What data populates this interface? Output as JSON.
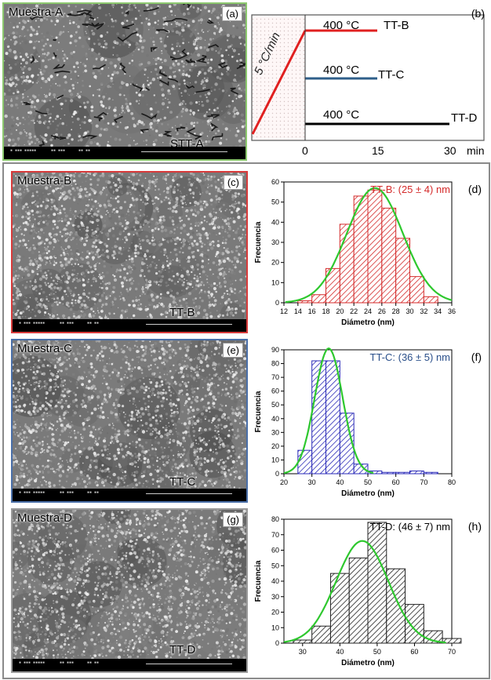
{
  "sem_images": [
    {
      "id": "a",
      "title": "Muestra-A",
      "panel": "(a)",
      "name": "STT-A",
      "frame": "#8cc86e",
      "bright": 0.55,
      "cracks": true,
      "seed": 3
    },
    {
      "id": "c",
      "title": "Muestra-B",
      "panel": "(c)",
      "name": "TT-B",
      "frame": "#d83a3a",
      "bright": 0.6,
      "cracks": false,
      "seed": 7
    },
    {
      "id": "e",
      "title": "Muestra-C",
      "panel": "(e)",
      "name": "TT-C",
      "frame": "#4a6fa8",
      "bright": 0.62,
      "cracks": false,
      "seed": 11
    },
    {
      "id": "g",
      "title": "Muestra-D",
      "panel": "(g)",
      "name": "TT-D",
      "frame": "#9a9a9a",
      "bright": 0.6,
      "cracks": false,
      "seed": 17
    }
  ],
  "schedule": {
    "panel": "(b)",
    "ramp_label": "5 °C/min",
    "x_ticks": [
      "0",
      "15",
      "30"
    ],
    "x_unit": "min",
    "lines": [
      {
        "temp": "400 °C",
        "name": "TT-B",
        "color": "#e02020",
        "minutes": 15
      },
      {
        "temp": "400 °C",
        "name": "TT-C",
        "color": "#2f5f8a",
        "minutes": 15
      },
      {
        "temp": "400 °C",
        "name": "TT-D",
        "color": "#000000",
        "minutes": 30
      }
    ]
  },
  "chart_data": [
    {
      "type": "bar",
      "panel": "(d)",
      "title": "TT-B: (25 ± 4) nm",
      "title_color": "#d42a2a",
      "xlabel": "Diámetro (nm)",
      "ylabel": "Frecuencia",
      "xlim": [
        12,
        36
      ],
      "ylim": [
        0,
        60
      ],
      "x_ticks": [
        12,
        14,
        16,
        18,
        20,
        22,
        24,
        26,
        28,
        30,
        32,
        34,
        36
      ],
      "y_ticks": [
        0,
        10,
        20,
        30,
        40,
        50,
        60
      ],
      "bins": [
        [
          14,
          16
        ],
        [
          16,
          18
        ],
        [
          18,
          20
        ],
        [
          20,
          22
        ],
        [
          22,
          24
        ],
        [
          24,
          26
        ],
        [
          26,
          28
        ],
        [
          28,
          30
        ],
        [
          30,
          32
        ],
        [
          32,
          34
        ]
      ],
      "values": [
        1,
        4,
        17,
        39,
        53,
        56,
        47,
        32,
        13,
        3
      ],
      "bar_color": "#d42a2a",
      "fit": {
        "mean": 25,
        "sigma": 4,
        "peak": 57,
        "color": "#2ec82e"
      }
    },
    {
      "type": "bar",
      "panel": "(f)",
      "title": "TT-C: (36 ± 5) nm",
      "title_color": "#2a4f8a",
      "xlabel": "Diámetro (nm)",
      "ylabel": "Frecuencia",
      "xlim": [
        20,
        80
      ],
      "ylim": [
        0,
        90
      ],
      "x_ticks": [
        20,
        30,
        40,
        50,
        60,
        70,
        80
      ],
      "y_ticks": [
        0,
        10,
        20,
        30,
        40,
        50,
        60,
        70,
        80,
        90
      ],
      "bins": [
        [
          25,
          30
        ],
        [
          30,
          35
        ],
        [
          35,
          40
        ],
        [
          40,
          45
        ],
        [
          45,
          50
        ],
        [
          50,
          55
        ],
        [
          55,
          60
        ],
        [
          60,
          65
        ],
        [
          65,
          70
        ],
        [
          70,
          75
        ]
      ],
      "values": [
        17,
        82,
        82,
        44,
        7,
        2,
        1,
        1,
        2,
        1
      ],
      "bar_color": "#2a2ab8",
      "fit": {
        "mean": 36,
        "sigma": 5,
        "peak": 91,
        "color": "#2ec82e"
      }
    },
    {
      "type": "bar",
      "panel": "(h)",
      "title": "TT-D: (46 ± 7) nm",
      "title_color": "#000000",
      "xlabel": "Diámetro (nm)",
      "ylabel": "Frecuencia",
      "xlim": [
        25,
        70
      ],
      "ylim": [
        0,
        80
      ],
      "x_ticks": [
        30,
        40,
        50,
        60,
        70
      ],
      "y_ticks": [
        0,
        10,
        20,
        30,
        40,
        50,
        60,
        70,
        80
      ],
      "bins": [
        [
          27.5,
          32.5
        ],
        [
          32.5,
          37.5
        ],
        [
          37.5,
          42.5
        ],
        [
          42.5,
          47.5
        ],
        [
          47.5,
          52.5
        ],
        [
          52.5,
          57.5
        ],
        [
          57.5,
          62.5
        ],
        [
          62.5,
          67.5
        ]
      ],
      "values": [
        2,
        11,
        45,
        55,
        78,
        48,
        25,
        8
      ],
      "extra_bar": {
        "bin": [
          67.5,
          72.5
        ],
        "value": 3
      },
      "bar_color": "#222222",
      "fit": {
        "mean": 46,
        "sigma": 7,
        "peak": 66,
        "color": "#2ec82e"
      }
    }
  ]
}
